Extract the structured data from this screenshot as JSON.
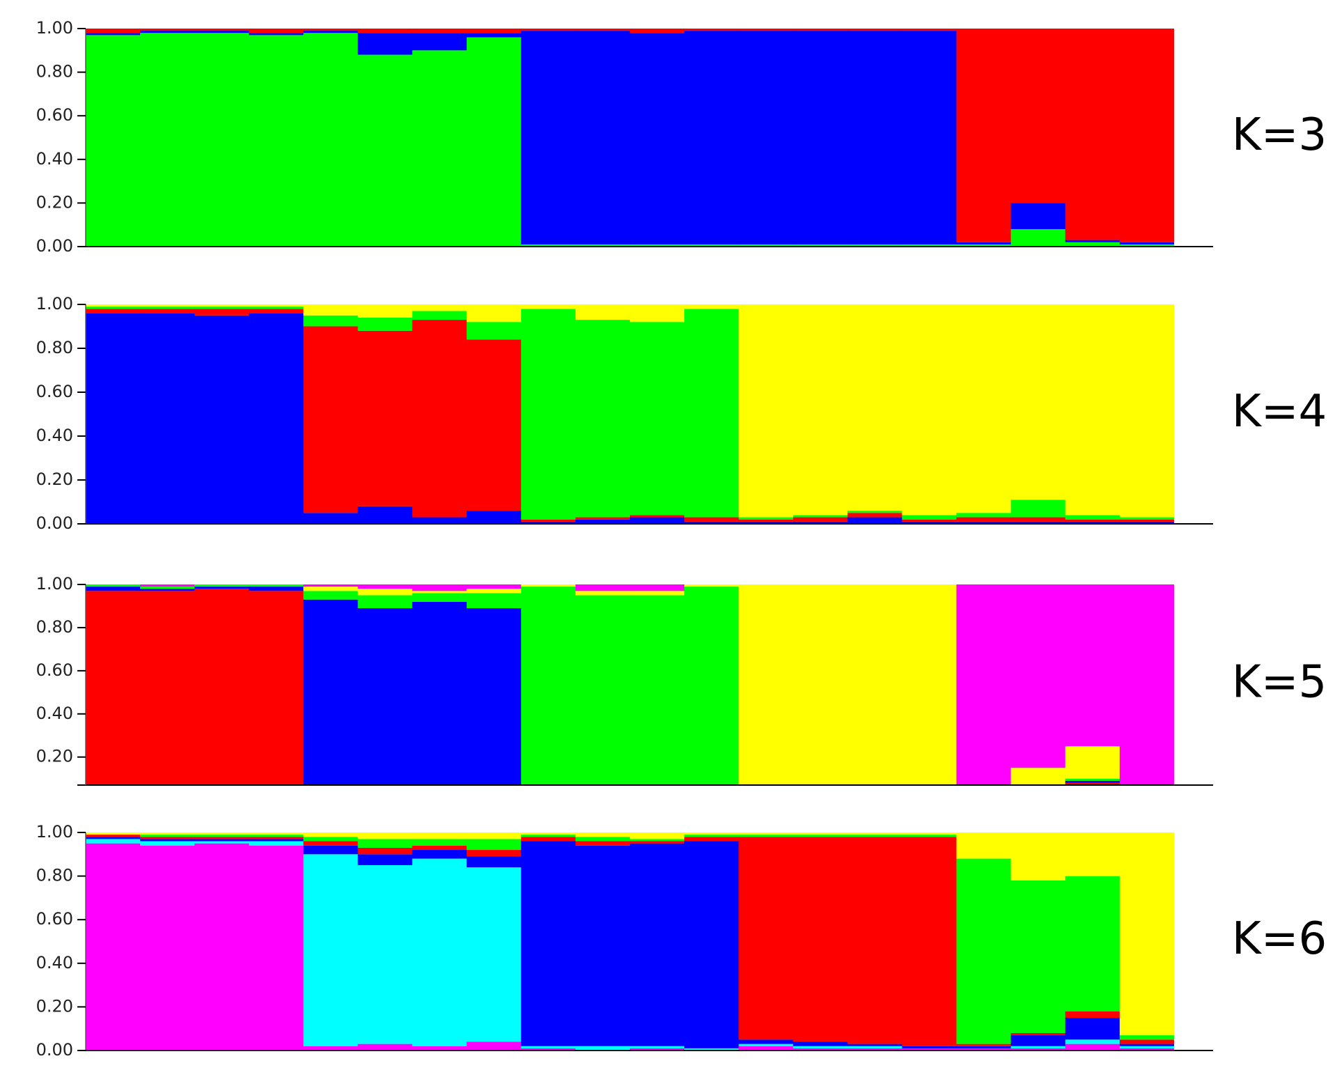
{
  "chart_data": [
    {
      "type": "bar",
      "stacked": true,
      "title": "K=3",
      "categories": [
        null,
        null,
        null,
        null,
        null,
        null,
        null,
        null,
        null,
        null,
        null,
        null,
        null,
        null,
        null,
        null,
        null,
        null,
        null,
        null
      ],
      "ylim": [
        0,
        1
      ],
      "yticks": [
        {
          "value": 0,
          "label": "0.00"
        },
        {
          "value": 0.2,
          "label": "0.20"
        },
        {
          "value": 0.4,
          "label": "0.40"
        },
        {
          "value": 0.6,
          "label": "0.60"
        },
        {
          "value": 0.8,
          "label": "0.80"
        },
        {
          "value": 1,
          "label": "1.00"
        }
      ],
      "series": [
        {
          "color": "#00ff00",
          "values": [
            0.97,
            0.98,
            0.98,
            0.97,
            0.98,
            0.88,
            0.9,
            0.96,
            0.01,
            0.01,
            0.01,
            0.01,
            0.01,
            0.01,
            0.01,
            0.01,
            0.01,
            0.08,
            0.02,
            0.01
          ]
        },
        {
          "color": "#0000ff",
          "values": [
            0.01,
            0.01,
            0.01,
            0.01,
            0.01,
            0.1,
            0.08,
            0.02,
            0.98,
            0.98,
            0.97,
            0.98,
            0.98,
            0.98,
            0.98,
            0.98,
            0.01,
            0.12,
            0.01,
            0.01
          ]
        },
        {
          "color": "#ff0000",
          "values": [
            0.02,
            0.01,
            0.01,
            0.02,
            0.01,
            0.02,
            0.02,
            0.02,
            0.01,
            0.01,
            0.02,
            0.01,
            0.01,
            0.01,
            0.01,
            0.01,
            0.98,
            0.8,
            0.97,
            0.98
          ]
        }
      ]
    },
    {
      "type": "bar",
      "stacked": true,
      "title": "K=4",
      "categories": [
        null,
        null,
        null,
        null,
        null,
        null,
        null,
        null,
        null,
        null,
        null,
        null,
        null,
        null,
        null,
        null,
        null,
        null,
        null,
        null
      ],
      "ylim": [
        0,
        1
      ],
      "yticks": [
        {
          "value": 0,
          "label": "0.00"
        },
        {
          "value": 0.2,
          "label": "0.20"
        },
        {
          "value": 0.4,
          "label": "0.40"
        },
        {
          "value": 0.6,
          "label": "0.60"
        },
        {
          "value": 0.8,
          "label": "0.80"
        },
        {
          "value": 1,
          "label": "1.00"
        }
      ],
      "series": [
        {
          "color": "#0000ff",
          "values": [
            0.96,
            0.96,
            0.95,
            0.96,
            0.05,
            0.08,
            0.03,
            0.06,
            0.01,
            0.02,
            0.03,
            0.01,
            0.01,
            0.01,
            0.03,
            0.01,
            0.01,
            0.01,
            0.01,
            0.01
          ]
        },
        {
          "color": "#ff0000",
          "values": [
            0.02,
            0.02,
            0.03,
            0.02,
            0.85,
            0.8,
            0.9,
            0.78,
            0.01,
            0.01,
            0.01,
            0.02,
            0.01,
            0.02,
            0.02,
            0.01,
            0.02,
            0.02,
            0.01,
            0.01
          ]
        },
        {
          "color": "#00ff00",
          "values": [
            0.01,
            0.01,
            0.01,
            0.01,
            0.05,
            0.06,
            0.04,
            0.08,
            0.96,
            0.9,
            0.88,
            0.95,
            0.01,
            0.01,
            0.01,
            0.02,
            0.02,
            0.08,
            0.02,
            0.01
          ]
        },
        {
          "color": "#ffff00",
          "values": [
            0.01,
            0.01,
            0.01,
            0.01,
            0.05,
            0.06,
            0.03,
            0.08,
            0.02,
            0.07,
            0.08,
            0.02,
            0.97,
            0.96,
            0.94,
            0.96,
            0.95,
            0.89,
            0.96,
            0.97
          ]
        }
      ]
    },
    {
      "type": "bar",
      "stacked": true,
      "title": "K=5",
      "categories": [
        null,
        null,
        null,
        null,
        null,
        null,
        null,
        null,
        null,
        null,
        null,
        null,
        null,
        null,
        null,
        null,
        null,
        null,
        null,
        null
      ],
      "ylim": [
        0.07,
        1
      ],
      "yticks": [
        {
          "value": 0.2,
          "label": "0.20"
        },
        {
          "value": 0.4,
          "label": "0.40"
        },
        {
          "value": 0.6,
          "label": "0.60"
        },
        {
          "value": 0.8,
          "label": "0.80"
        },
        {
          "value": 1,
          "label": "1.00"
        }
      ],
      "series": [
        {
          "color": "#ff0000",
          "values": [
            0.97,
            0.97,
            0.98,
            0.97,
            0.03,
            0.04,
            0.02,
            0.03,
            0.01,
            0.02,
            0.01,
            0.01,
            0.02,
            0.01,
            0.04,
            0.01,
            0.01,
            0.02,
            0.08,
            0.01
          ]
        },
        {
          "color": "#0000ff",
          "values": [
            0.02,
            0.01,
            0.01,
            0.02,
            0.9,
            0.85,
            0.9,
            0.86,
            0.01,
            0.01,
            0.01,
            0.01,
            0.02,
            0.02,
            0.01,
            0.01,
            0.01,
            0.01,
            0.01,
            0.01
          ]
        },
        {
          "color": "#00ff00",
          "values": [
            0.01,
            0.01,
            0.01,
            0.01,
            0.04,
            0.06,
            0.04,
            0.07,
            0.97,
            0.92,
            0.93,
            0.97,
            0.01,
            0.01,
            0.01,
            0.01,
            0.01,
            0.02,
            0.01,
            0.01
          ]
        },
        {
          "color": "#ffff00",
          "values": [
            0,
            0,
            0,
            0,
            0.02,
            0.03,
            0.01,
            0.02,
            0.01,
            0.02,
            0.02,
            0.01,
            0.95,
            0.96,
            0.94,
            0.97,
            0.01,
            0.1,
            0.15,
            0.01
          ]
        },
        {
          "color": "#ff00ff",
          "values": [
            0,
            0.01,
            0,
            0,
            0.01,
            0.02,
            0.03,
            0.02,
            0,
            0.03,
            0.03,
            0,
            0,
            0,
            0,
            0,
            0.96,
            0.85,
            0.75,
            0.96
          ]
        }
      ]
    },
    {
      "type": "bar",
      "stacked": true,
      "title": "K=6",
      "categories": [
        null,
        null,
        null,
        null,
        null,
        null,
        null,
        null,
        null,
        null,
        null,
        null,
        null,
        null,
        null,
        null,
        null,
        null,
        null,
        null
      ],
      "ylim": [
        0,
        1
      ],
      "yticks": [
        {
          "value": 0,
          "label": "0.00"
        },
        {
          "value": 0.2,
          "label": "0.20"
        },
        {
          "value": 0.4,
          "label": "0.40"
        },
        {
          "value": 0.6,
          "label": "0.60"
        },
        {
          "value": 0.8,
          "label": "0.80"
        },
        {
          "value": 1,
          "label": "1.00"
        }
      ],
      "series": [
        {
          "color": "#ff00ff",
          "values": [
            0.95,
            0.94,
            0.95,
            0.94,
            0.02,
            0.03,
            0.02,
            0.04,
            0.01,
            0,
            0.01,
            0,
            0.02,
            0.01,
            0.01,
            0.01,
            0.01,
            0.01,
            0.03,
            0.01
          ]
        },
        {
          "color": "#00ffff",
          "values": [
            0.02,
            0.02,
            0.01,
            0.02,
            0.88,
            0.82,
            0.86,
            0.8,
            0.01,
            0.02,
            0.01,
            0.01,
            0.01,
            0.01,
            0.01,
            0,
            0,
            0.01,
            0.02,
            0.01
          ]
        },
        {
          "color": "#0000ff",
          "values": [
            0.01,
            0.01,
            0.01,
            0.01,
            0.04,
            0.05,
            0.04,
            0.05,
            0.94,
            0.92,
            0.93,
            0.95,
            0.02,
            0.02,
            0.01,
            0.01,
            0.01,
            0.05,
            0.1,
            0.01
          ]
        },
        {
          "color": "#ff0000",
          "values": [
            0.01,
            0.01,
            0.01,
            0.01,
            0.02,
            0.03,
            0.02,
            0.03,
            0.02,
            0.02,
            0.01,
            0.02,
            0.93,
            0.94,
            0.95,
            0.96,
            0.01,
            0.01,
            0.03,
            0.02
          ]
        },
        {
          "color": "#00ff00",
          "values": [
            0,
            0.01,
            0.01,
            0.01,
            0.02,
            0.04,
            0.03,
            0.05,
            0.01,
            0.02,
            0.01,
            0.01,
            0.01,
            0.01,
            0.01,
            0.01,
            0.85,
            0.7,
            0.62,
            0.02
          ]
        },
        {
          "color": "#ffff00",
          "values": [
            0.01,
            0.01,
            0.01,
            0.01,
            0.02,
            0.03,
            0.03,
            0.03,
            0.01,
            0.02,
            0.03,
            0.01,
            0.01,
            0.01,
            0.01,
            0.01,
            0.12,
            0.22,
            0.2,
            0.93
          ]
        }
      ]
    }
  ]
}
